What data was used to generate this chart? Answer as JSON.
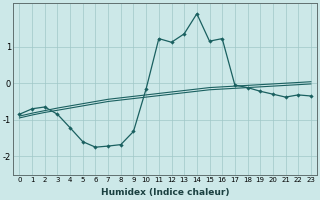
{
  "xlabel": "Humidex (Indice chaleur)",
  "ylabel": "",
  "bg_color": "#cce8e8",
  "grid_color": "#a0c8c8",
  "line_color": "#1a6060",
  "x_values": [
    0,
    1,
    2,
    3,
    4,
    5,
    6,
    7,
    8,
    9,
    10,
    11,
    12,
    13,
    14,
    15,
    16,
    17,
    18,
    19,
    20,
    21,
    22,
    23
  ],
  "y_main": [
    -0.85,
    -0.7,
    -0.65,
    -0.85,
    -1.22,
    -1.6,
    -1.75,
    -1.72,
    -1.68,
    -1.32,
    -0.15,
    1.22,
    1.12,
    1.35,
    1.9,
    1.15,
    1.22,
    -0.05,
    -0.12,
    -0.22,
    -0.3,
    -0.38,
    -0.32,
    -0.35
  ],
  "y_ref1": [
    -0.9,
    -0.82,
    -0.75,
    -0.68,
    -0.62,
    -0.56,
    -0.5,
    -0.44,
    -0.4,
    -0.36,
    -0.32,
    -0.28,
    -0.24,
    -0.2,
    -0.16,
    -0.12,
    -0.1,
    -0.08,
    -0.06,
    -0.04,
    -0.02,
    0.0,
    0.02,
    0.04
  ],
  "y_ref2": [
    -0.95,
    -0.87,
    -0.8,
    -0.74,
    -0.68,
    -0.62,
    -0.56,
    -0.5,
    -0.46,
    -0.42,
    -0.38,
    -0.34,
    -0.3,
    -0.26,
    -0.22,
    -0.18,
    -0.16,
    -0.14,
    -0.12,
    -0.1,
    -0.08,
    -0.06,
    -0.04,
    -0.02
  ],
  "ylim": [
    -2.5,
    2.2
  ],
  "yticks": [
    -2,
    -1,
    0,
    1
  ],
  "xticks": [
    0,
    1,
    2,
    3,
    4,
    5,
    6,
    7,
    8,
    9,
    10,
    11,
    12,
    13,
    14,
    15,
    16,
    17,
    18,
    19,
    20,
    21,
    22,
    23
  ]
}
